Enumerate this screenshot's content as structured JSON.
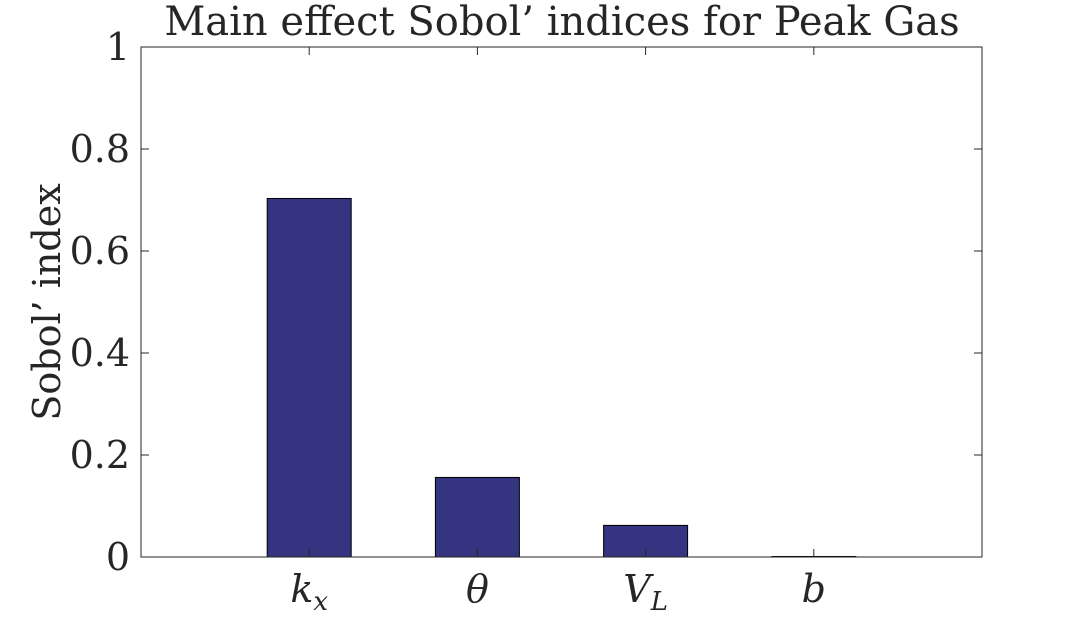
{
  "chart_data": {
    "type": "bar",
    "title": "Main effect Sobol’ indices for Peak Gas",
    "xlabel": "",
    "ylabel": "Sobol’ index",
    "categories": [
      {
        "base": "k",
        "sub": "x"
      },
      {
        "base": "θ",
        "sub": ""
      },
      {
        "base": "V",
        "sub": "L"
      },
      {
        "base": "b",
        "sub": ""
      }
    ],
    "values": [
      0.703,
      0.156,
      0.062,
      0.001
    ],
    "ylim": [
      0,
      1
    ],
    "yticks": [
      0,
      0.2,
      0.4,
      0.6,
      0.8,
      1
    ],
    "ytick_labels": [
      "0",
      "0.2",
      "0.4",
      "0.6",
      "0.8",
      "1"
    ],
    "grid": false,
    "bar_color": "#343480",
    "edge_color": "#000000"
  }
}
